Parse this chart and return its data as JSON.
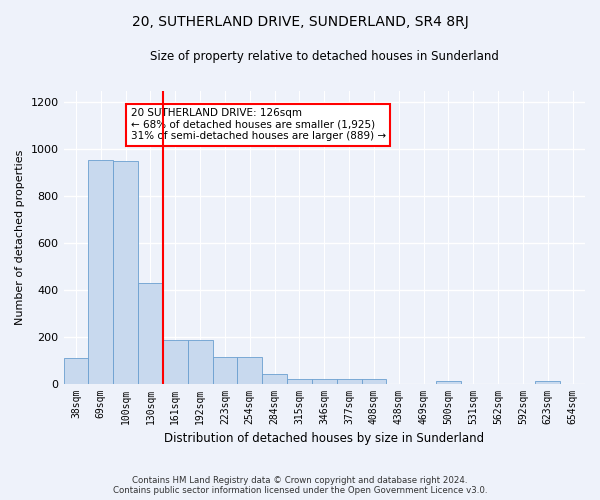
{
  "title": "20, SUTHERLAND DRIVE, SUNDERLAND, SR4 8RJ",
  "subtitle": "Size of property relative to detached houses in Sunderland",
  "xlabel": "Distribution of detached houses by size in Sunderland",
  "ylabel": "Number of detached properties",
  "categories": [
    "38sqm",
    "69sqm",
    "100sqm",
    "130sqm",
    "161sqm",
    "192sqm",
    "223sqm",
    "254sqm",
    "284sqm",
    "315sqm",
    "346sqm",
    "377sqm",
    "408sqm",
    "438sqm",
    "469sqm",
    "500sqm",
    "531sqm",
    "562sqm",
    "592sqm",
    "623sqm",
    "654sqm"
  ],
  "values": [
    110,
    955,
    950,
    430,
    185,
    185,
    115,
    115,
    42,
    20,
    20,
    18,
    18,
    0,
    0,
    12,
    0,
    0,
    0,
    12,
    0
  ],
  "bar_color": "#c8d9ee",
  "bar_edge_color": "#6a9fd0",
  "property_line_index": 3,
  "annotation_text": "20 SUTHERLAND DRIVE: 126sqm\n← 68% of detached houses are smaller (1,925)\n31% of semi-detached houses are larger (889) →",
  "annotation_box_color": "white",
  "annotation_box_edge_color": "red",
  "vline_color": "red",
  "ylim": [
    0,
    1250
  ],
  "yticks": [
    0,
    200,
    400,
    600,
    800,
    1000,
    1200
  ],
  "background_color": "#eef2fa",
  "grid_color": "#ffffff",
  "footer_line1": "Contains HM Land Registry data © Crown copyright and database right 2024.",
  "footer_line2": "Contains public sector information licensed under the Open Government Licence v3.0."
}
